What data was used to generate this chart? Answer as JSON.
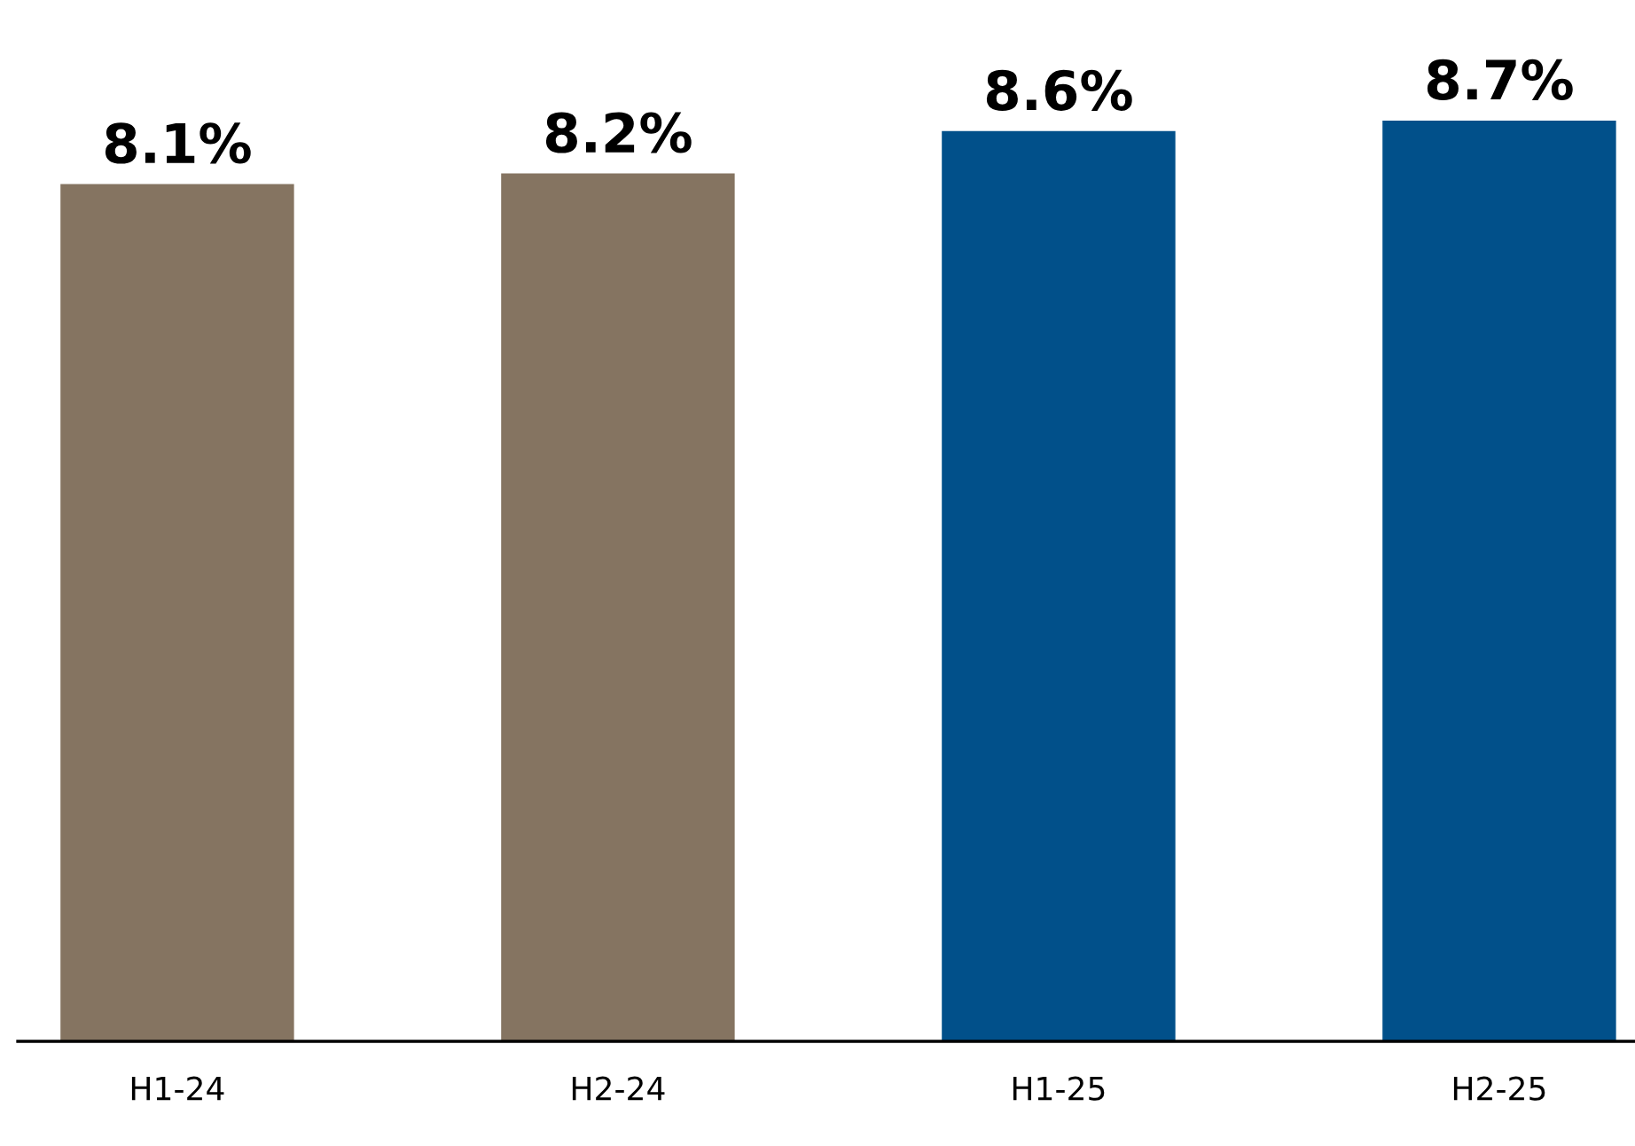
{
  "chart_data": {
    "type": "bar",
    "categories": [
      "H1-24",
      "H2-24",
      "H1-25",
      "H2-25"
    ],
    "values": [
      8.1,
      8.2,
      8.6,
      8.7
    ],
    "colors": [
      "#857461",
      "#857461",
      "#01508a",
      "#01508a"
    ],
    "data_labels": true,
    "value_labels": [
      "8.1%",
      "8.2%",
      "8.6%",
      "8.7%"
    ],
    "grid": false,
    "tick_labels": "x"
  }
}
